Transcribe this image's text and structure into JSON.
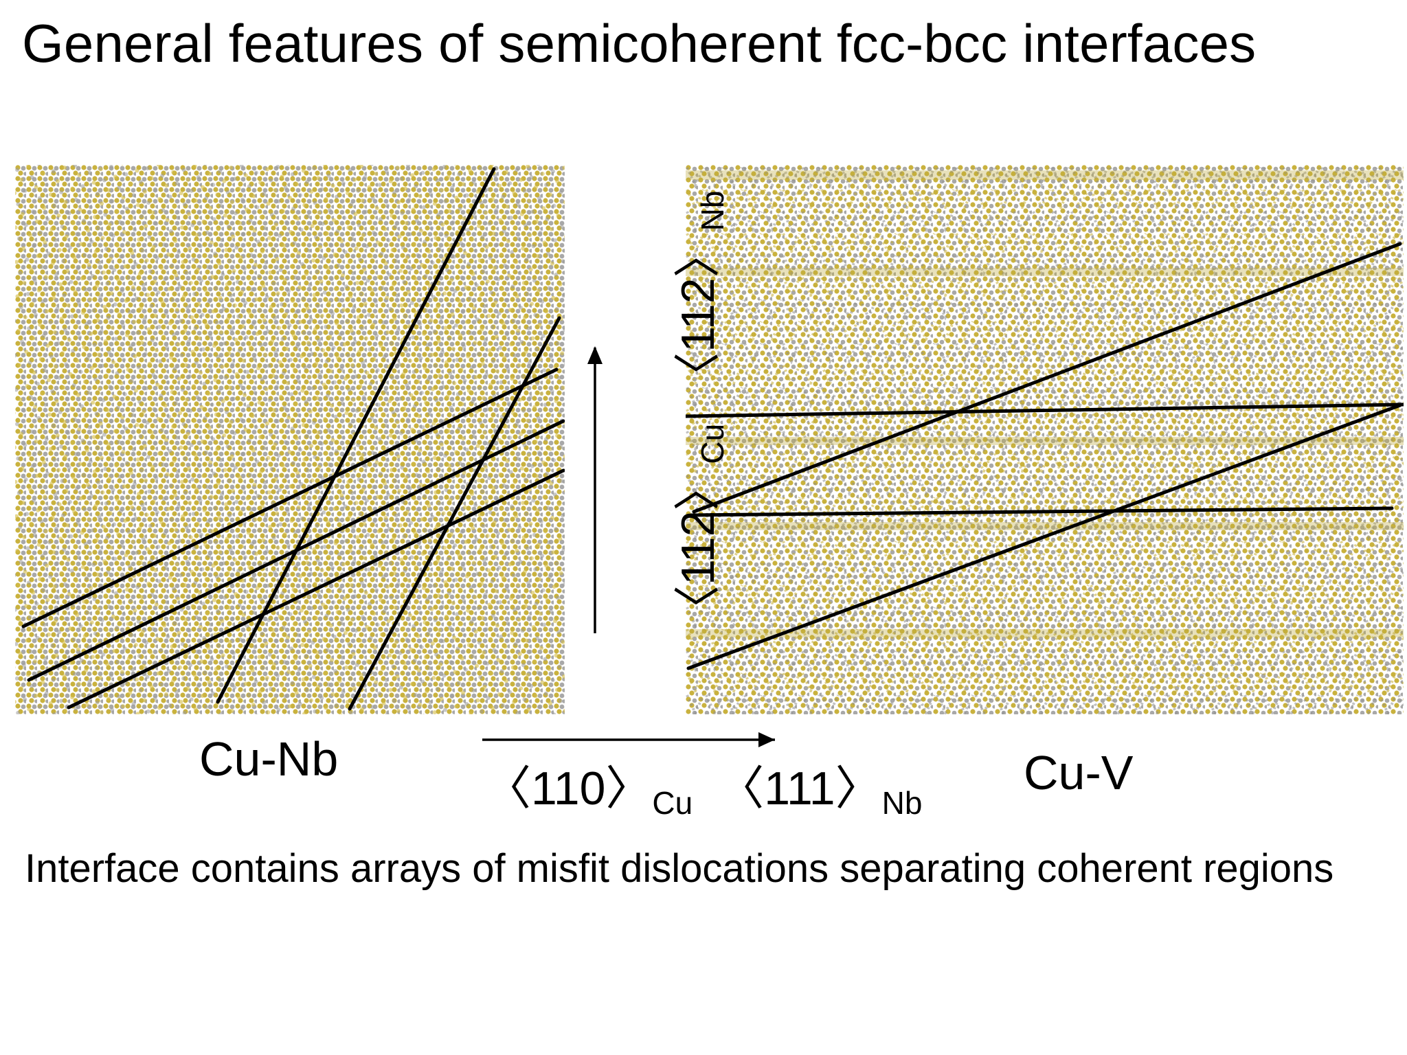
{
  "title": "General features of semicoherent fcc-bcc interfaces",
  "panels": {
    "left": {
      "label": "Cu-Nb"
    },
    "right": {
      "label": "Cu-V"
    }
  },
  "directions": {
    "horizontal": {
      "cu_main": "〈110〉",
      "cu_sub": "Cu",
      "other_main": "〈111〉",
      "other_sub": "Nb"
    },
    "vertical": {
      "cu_main": "〈112〉",
      "cu_sub": "Cu",
      "other_main": "〈112〉",
      "other_sub": "Nb"
    }
  },
  "caption": "Interface contains arrays of misfit dislocations separating coherent regions",
  "colors": {
    "atom_gold": "#c9b23e",
    "atom_gray": "#9a9a9a",
    "line": "#000000"
  }
}
